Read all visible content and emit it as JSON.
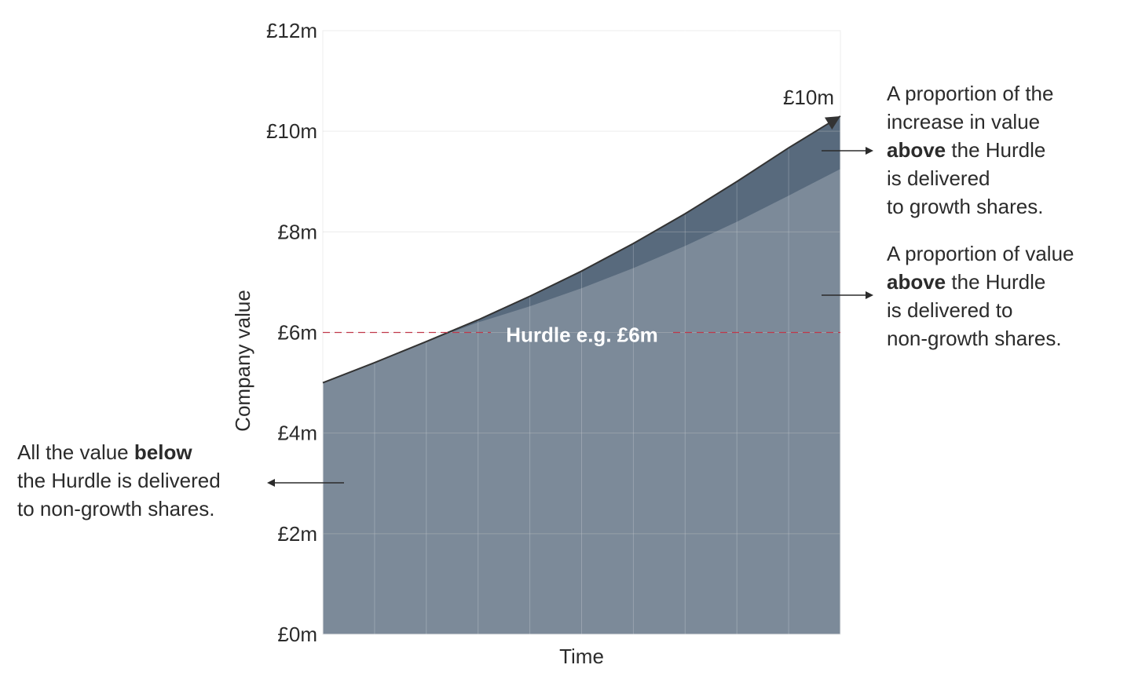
{
  "chart_data": {
    "type": "area",
    "ylabel": "Company value",
    "xlabel": "Time",
    "ylim": [
      0,
      12
    ],
    "y_ticks": [
      "£0m",
      "£2m",
      "£4m",
      "£6m",
      "£8m",
      "£10m",
      "£12m"
    ],
    "y_tick_values": [
      0,
      2,
      4,
      6,
      8,
      10,
      12
    ],
    "grid": true,
    "x": [
      0,
      1,
      2,
      3,
      4,
      5,
      6,
      7,
      8,
      9,
      10
    ],
    "company_value": [
      5.0,
      5.4,
      5.82,
      6.25,
      6.72,
      7.22,
      7.77,
      8.36,
      9.0,
      9.67,
      10.3
    ],
    "non_growth_value": [
      5.0,
      5.4,
      5.82,
      6.2,
      6.52,
      6.88,
      7.28,
      7.72,
      8.2,
      8.72,
      9.25
    ],
    "hurdle": {
      "value": 6,
      "label": "Hurdle e.g. £6m",
      "color": "#c0394b"
    },
    "end_label": "£10m",
    "colors": {
      "total_area": "#586a7d",
      "lower_area": "#7c8a99",
      "curve": "#333333"
    }
  },
  "annotations": {
    "growth": {
      "line1": "A proportion of the",
      "line2": "increase in value",
      "line3_bold": "above",
      "line3_rest": " the Hurdle",
      "line4": "is delivered",
      "line5": "to growth shares."
    },
    "non_growth_above": {
      "line1": "A proportion of value",
      "line2_bold": "above",
      "line2_rest": " the Hurdle",
      "line3": "is delivered to",
      "line4": "non-growth shares."
    },
    "below": {
      "line1_pre": "All the value ",
      "line1_bold": "below",
      "line2": "the Hurdle is delivered",
      "line3": "to non-growth shares."
    }
  }
}
